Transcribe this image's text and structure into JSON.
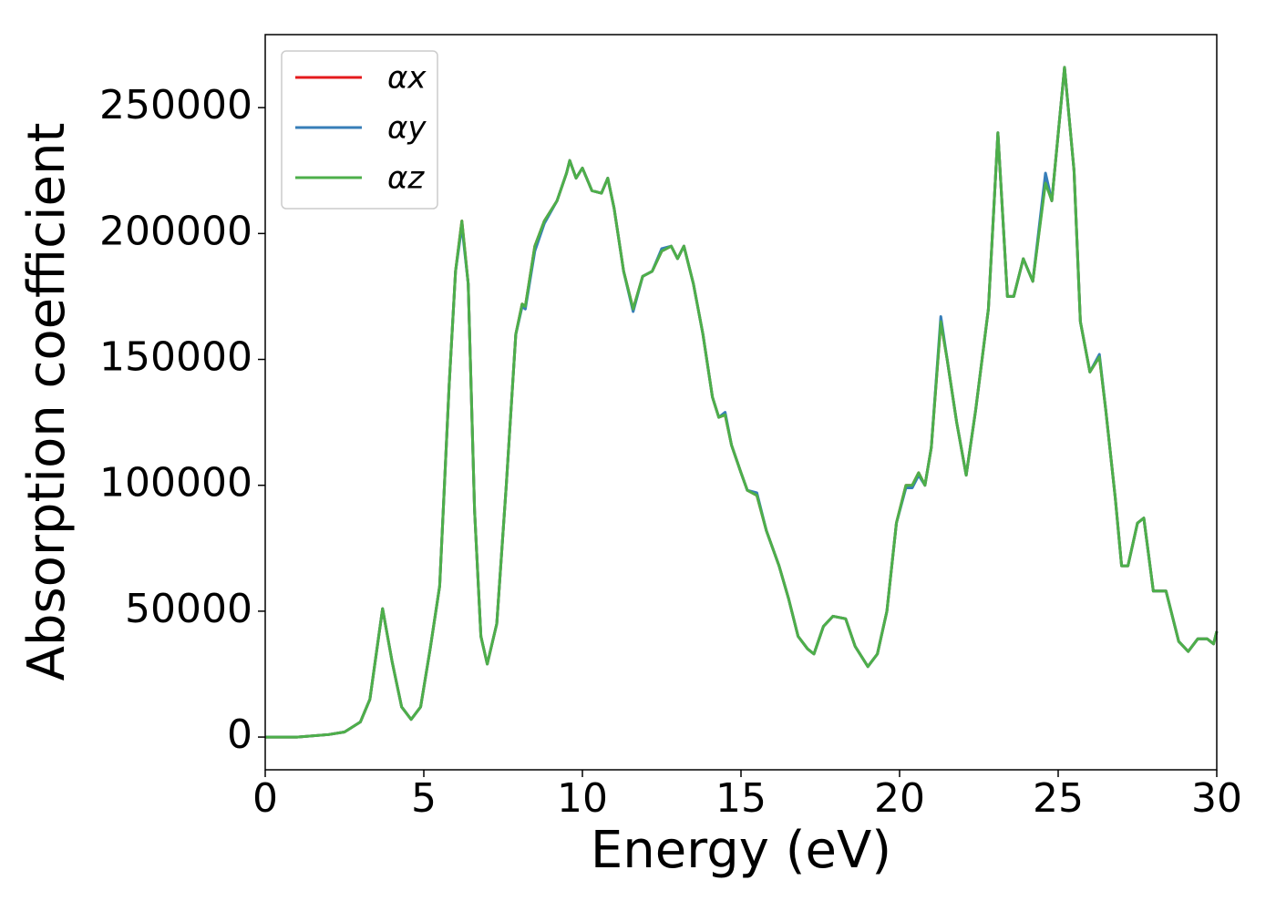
{
  "chart_data": {
    "type": "line",
    "xlabel": "Energy (eV)",
    "ylabel": "Absorption coefficient",
    "xlim": [
      0,
      30
    ],
    "ylim": [
      -13000,
      279000
    ],
    "xticks": [
      0,
      5,
      10,
      15,
      20,
      25,
      30
    ],
    "yticks": [
      0,
      50000,
      100000,
      150000,
      200000,
      250000
    ],
    "legend": "upper-left",
    "x": [
      0,
      1,
      2,
      2.5,
      3,
      3.3,
      3.7,
      4.0,
      4.3,
      4.6,
      4.9,
      5.2,
      5.5,
      5.8,
      6.0,
      6.2,
      6.4,
      6.6,
      6.8,
      7.0,
      7.3,
      7.6,
      7.9,
      8.1,
      8.2,
      8.5,
      8.8,
      9.2,
      9.5,
      9.6,
      9.8,
      10.0,
      10.3,
      10.6,
      10.8,
      11.0,
      11.3,
      11.6,
      11.9,
      12.2,
      12.5,
      12.8,
      13.0,
      13.2,
      13.5,
      13.8,
      14.1,
      14.3,
      14.5,
      14.7,
      15.0,
      15.2,
      15.5,
      15.8,
      16.2,
      16.5,
      16.8,
      17.1,
      17.3,
      17.6,
      17.9,
      18.3,
      18.6,
      19.0,
      19.3,
      19.6,
      19.9,
      20.2,
      20.4,
      20.6,
      20.8,
      21.0,
      21.3,
      21.5,
      21.8,
      22.1,
      22.4,
      22.8,
      23.1,
      23.4,
      23.6,
      23.9,
      24.2,
      24.6,
      24.8,
      25.2,
      25.5,
      25.7,
      26.0,
      26.3,
      26.5,
      26.8,
      27.0,
      27.2,
      27.5,
      27.7,
      28.0,
      28.4,
      28.8,
      29.1,
      29.4,
      29.7,
      29.9,
      30.0
    ],
    "series": [
      {
        "name": "αx",
        "color": "#e41a1c",
        "values": [
          0,
          0,
          1000,
          2000,
          6000,
          15000,
          51000,
          30000,
          12000,
          7000,
          12000,
          35000,
          60000,
          140000,
          185000,
          205000,
          180000,
          90000,
          40000,
          29000,
          45000,
          100000,
          160000,
          172000,
          171000,
          195000,
          205000,
          213000,
          224000,
          229000,
          222000,
          226000,
          217000,
          216000,
          222000,
          210000,
          185000,
          170000,
          183000,
          185000,
          193000,
          195000,
          190000,
          195000,
          180000,
          160000,
          135000,
          127000,
          128000,
          116000,
          105000,
          98000,
          96000,
          82000,
          68000,
          55000,
          40000,
          35000,
          33000,
          44000,
          48000,
          47000,
          36000,
          28000,
          33000,
          50000,
          85000,
          100000,
          100000,
          105000,
          100000,
          115000,
          165000,
          150000,
          125000,
          104000,
          130000,
          170000,
          240000,
          175000,
          175000,
          190000,
          181000,
          221000,
          213000,
          266000,
          225000,
          165000,
          145000,
          151000,
          130000,
          95000,
          68000,
          68000,
          85000,
          87000,
          58000,
          58000,
          38000,
          34000,
          39000,
          39000,
          37000,
          42000
        ]
      },
      {
        "name": "αy",
        "color": "#377eb8",
        "values": [
          0,
          0,
          1000,
          2000,
          6000,
          15000,
          51000,
          30000,
          12000,
          7000,
          12000,
          35000,
          60000,
          140000,
          185000,
          203000,
          180000,
          90000,
          40000,
          29000,
          45000,
          100000,
          160000,
          171000,
          170000,
          193000,
          204000,
          213000,
          224000,
          229000,
          222000,
          226000,
          217000,
          216000,
          222000,
          210000,
          185000,
          169000,
          183000,
          185000,
          194000,
          195000,
          190000,
          195000,
          180000,
          160000,
          135000,
          127000,
          129000,
          116000,
          105000,
          98000,
          97000,
          82000,
          68000,
          55000,
          40000,
          35000,
          33000,
          44000,
          48000,
          47000,
          36000,
          28000,
          33000,
          50000,
          85000,
          99000,
          99000,
          104000,
          100000,
          115000,
          167000,
          150000,
          125000,
          104000,
          130000,
          170000,
          240000,
          175000,
          175000,
          190000,
          181000,
          224000,
          213000,
          266000,
          225000,
          165000,
          145000,
          152000,
          130000,
          95000,
          68000,
          68000,
          85000,
          87000,
          58000,
          58000,
          38000,
          34000,
          39000,
          39000,
          37000,
          42000
        ]
      },
      {
        "name": "αz",
        "color": "#4daf4a",
        "values": [
          0,
          0,
          1000,
          2000,
          6000,
          15000,
          51000,
          30000,
          12000,
          7000,
          12000,
          35000,
          60000,
          140000,
          185000,
          205000,
          180000,
          90000,
          40000,
          29000,
          45000,
          100000,
          160000,
          172000,
          171000,
          195000,
          205000,
          213000,
          224000,
          229000,
          222000,
          226000,
          217000,
          216000,
          222000,
          210000,
          185000,
          170000,
          183000,
          185000,
          193000,
          195000,
          190000,
          195000,
          180000,
          160000,
          135000,
          127000,
          128000,
          116000,
          105000,
          98000,
          96000,
          82000,
          68000,
          55000,
          40000,
          35000,
          33000,
          44000,
          48000,
          47000,
          36000,
          28000,
          33000,
          50000,
          85000,
          100000,
          100000,
          105000,
          100000,
          115000,
          165000,
          150000,
          125000,
          104000,
          130000,
          170000,
          240000,
          175000,
          175000,
          190000,
          181000,
          220000,
          213000,
          266000,
          225000,
          165000,
          145000,
          151000,
          130000,
          95000,
          68000,
          68000,
          85000,
          87000,
          58000,
          58000,
          38000,
          34000,
          39000,
          39000,
          37000,
          42000
        ]
      }
    ]
  }
}
